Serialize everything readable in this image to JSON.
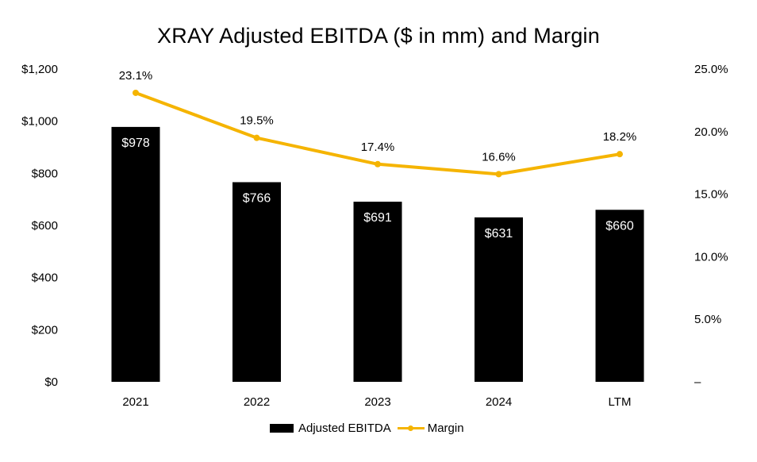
{
  "chart_data": {
    "type": "bar",
    "title": "XRAY Adjusted EBITDA ($ in mm) and Margin",
    "categories": [
      "2021",
      "2022",
      "2023",
      "2024",
      "LTM"
    ],
    "series": [
      {
        "name": "Adjusted EBITDA",
        "type": "bar",
        "axis": "left",
        "values": [
          978,
          766,
          691,
          631,
          660
        ],
        "labels": [
          "$978",
          "$766",
          "$691",
          "$631",
          "$660"
        ],
        "color": "#000000"
      },
      {
        "name": "Margin",
        "type": "line",
        "axis": "right",
        "values": [
          23.1,
          19.5,
          17.4,
          16.6,
          18.2
        ],
        "labels": [
          "23.1%",
          "19.5%",
          "17.4%",
          "16.6%",
          "18.2%"
        ],
        "color": "#f5b400"
      }
    ],
    "y_left": {
      "ylim": [
        0,
        1200
      ],
      "ticks": [
        0,
        200,
        400,
        600,
        800,
        1000,
        1200
      ],
      "tick_labels": [
        "$0",
        "$200",
        "$400",
        "$600",
        "$800",
        "$1,000",
        "$1,200"
      ]
    },
    "y_right": {
      "ylim": [
        0,
        25
      ],
      "ticks": [
        0,
        5,
        10,
        15,
        20,
        25
      ],
      "tick_labels": [
        "–",
        "5.0%",
        "10.0%",
        "15.0%",
        "20.0%",
        "25.0%"
      ]
    },
    "grid": false,
    "legend": "bottom-center"
  }
}
